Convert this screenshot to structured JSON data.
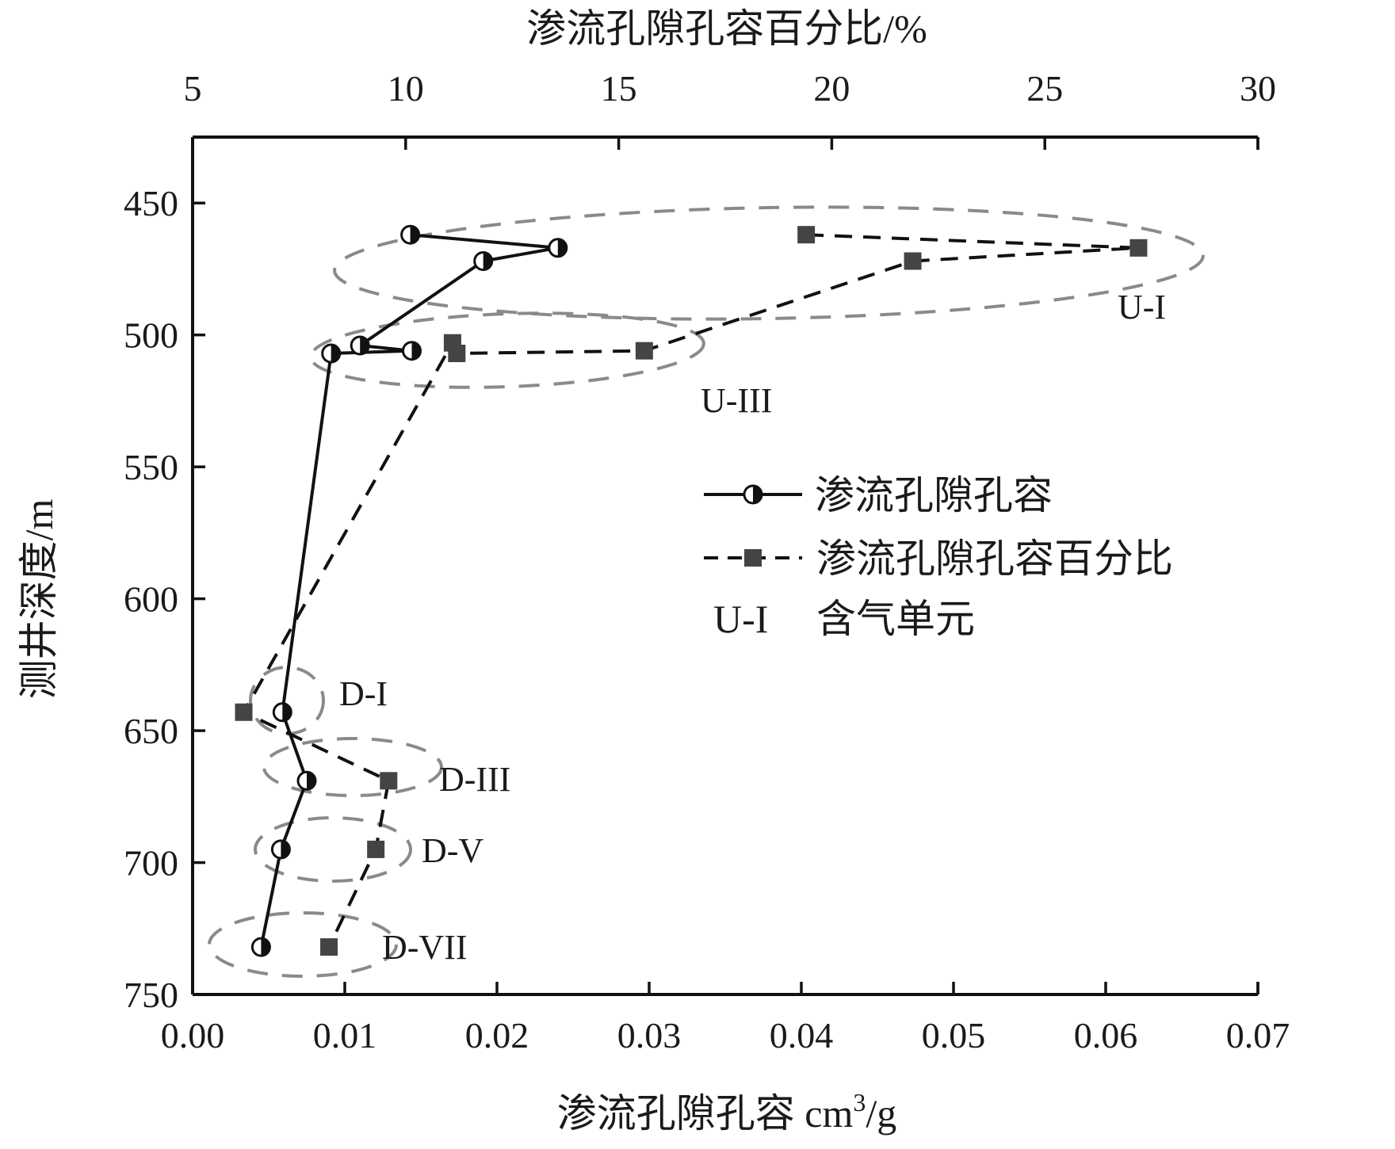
{
  "chart_data": {
    "type": "line",
    "x_bottom": {
      "label": "渗流孔隙孔容 cm",
      "label_sup": "3",
      "label_tail": "/g",
      "range": [
        0.0,
        0.07
      ],
      "ticks": [
        "0.00",
        "0.01",
        "0.02",
        "0.03",
        "0.04",
        "0.05",
        "0.06",
        "0.07"
      ]
    },
    "x_top": {
      "label": "渗流孔隙孔容百分比/%",
      "range": [
        5,
        30
      ],
      "ticks": [
        "5",
        "10",
        "15",
        "20",
        "25",
        "30"
      ]
    },
    "y": {
      "label": "测井深度/m",
      "range": [
        425,
        750
      ],
      "inverted": true,
      "ticks": [
        "450",
        "500",
        "550",
        "600",
        "650",
        "700",
        "750"
      ]
    },
    "series": [
      {
        "name": "渗流孔隙孔容",
        "axis": "bottom",
        "style": "solid",
        "marker": "half-filled-circle",
        "color": "#111111",
        "points": [
          {
            "x": 0.0143,
            "y": 462
          },
          {
            "x": 0.024,
            "y": 467
          },
          {
            "x": 0.0191,
            "y": 472
          },
          {
            "x": 0.011,
            "y": 504
          },
          {
            "x": 0.0144,
            "y": 506
          },
          {
            "x": 0.0091,
            "y": 507
          },
          {
            "x": 0.0059,
            "y": 643
          },
          {
            "x": 0.0075,
            "y": 669
          },
          {
            "x": 0.0058,
            "y": 695
          },
          {
            "x": 0.0045,
            "y": 732
          }
        ]
      },
      {
        "name": "渗流孔隙孔容百分比",
        "axis": "top",
        "style": "dashed",
        "marker": "filled-square",
        "color": "#444444",
        "points": [
          {
            "x": 19.4,
            "y": 462
          },
          {
            "x": 27.2,
            "y": 467
          },
          {
            "x": 21.9,
            "y": 472
          },
          {
            "x": 15.6,
            "y": 506
          },
          {
            "x": 11.2,
            "y": 507
          },
          {
            "x": 11.1,
            "y": 503
          },
          {
            "x": 6.2,
            "y": 643
          },
          {
            "x": 9.6,
            "y": 669
          },
          {
            "x": 9.3,
            "y": 695
          },
          {
            "x": 8.2,
            "y": 732
          }
        ]
      }
    ],
    "groups": [
      {
        "label": "U-I"
      },
      {
        "label": "U-III"
      },
      {
        "label": "D-I"
      },
      {
        "label": "D-III"
      },
      {
        "label": "D-V"
      },
      {
        "label": "D-VII"
      }
    ],
    "legend": {
      "placement": "center-right",
      "entries": [
        {
          "label": "渗流孔隙孔容"
        },
        {
          "label": "渗流孔隙孔容百分比"
        },
        {
          "symbol_text": "U-I",
          "label": "含气单元"
        }
      ]
    }
  }
}
